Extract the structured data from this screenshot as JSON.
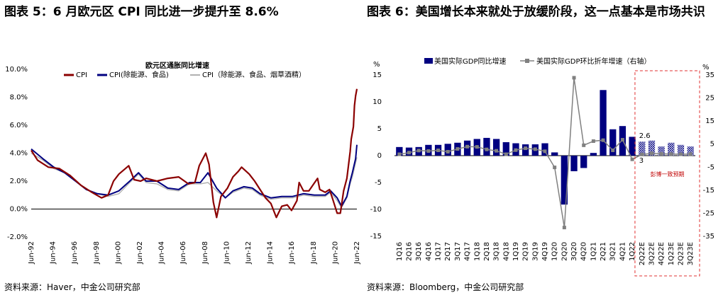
{
  "figure_left": {
    "title": "图表 5：6 月欧元区 CPI 同比进一步提升至 8.6%",
    "source": "资料来源：Haver，中金公司研究部"
  },
  "figure_right": {
    "title": "图表 6：美国增长本来就处于放缓阶段，这一点基本是市场共识",
    "source": "资料来源：Bloomberg，中金公司研究部"
  },
  "chart_data": [
    {
      "type": "line",
      "title": "欧元区通胀同比增速",
      "ylim": [
        -2,
        10
      ],
      "y_ticks": [
        "-2.0%",
        "0.0%",
        "2.0%",
        "4.0%",
        "6.0%",
        "8.0%",
        "10.0%"
      ],
      "x_ticks": [
        "Jun-92",
        "Jun-94",
        "Jun-96",
        "Jun-98",
        "Jun-00",
        "Jun-02",
        "Jun-04",
        "Jun-06",
        "Jun-08",
        "Jun-10",
        "Jun-12",
        "Jun-14",
        "Jun-16",
        "Jun-18",
        "Jun-20",
        "Jun-22"
      ],
      "x_range": [
        1992.42,
        2022.42
      ],
      "legend_position": "top",
      "colors": {
        "cpi": "#8b0000",
        "core": "#000080",
        "core2": "#b0b0b0"
      },
      "series": [
        {
          "name": "CPI",
          "points": [
            [
              1992.42,
              4.2
            ],
            [
              1993.0,
              3.5
            ],
            [
              1994.0,
              3.0
            ],
            [
              1995.0,
              2.9
            ],
            [
              1996.0,
              2.4
            ],
            [
              1997.0,
              1.7
            ],
            [
              1998.0,
              1.2
            ],
            [
              1998.9,
              0.8
            ],
            [
              1999.5,
              1.0
            ],
            [
              2000.0,
              2.0
            ],
            [
              2000.5,
              2.5
            ],
            [
              2001.4,
              3.1
            ],
            [
              2001.9,
              2.1
            ],
            [
              2002.5,
              2.0
            ],
            [
              2003.0,
              2.2
            ],
            [
              2004.0,
              2.0
            ],
            [
              2005.0,
              2.2
            ],
            [
              2006.0,
              2.3
            ],
            [
              2006.9,
              1.8
            ],
            [
              2007.5,
              1.9
            ],
            [
              2007.9,
              3.1
            ],
            [
              2008.5,
              4.0
            ],
            [
              2008.8,
              3.2
            ],
            [
              2009.2,
              0.5
            ],
            [
              2009.5,
              -0.6
            ],
            [
              2009.9,
              0.9
            ],
            [
              2010.5,
              1.5
            ],
            [
              2011.0,
              2.3
            ],
            [
              2011.5,
              2.7
            ],
            [
              2011.8,
              3.0
            ],
            [
              2012.5,
              2.5
            ],
            [
              2013.0,
              2.0
            ],
            [
              2013.5,
              1.4
            ],
            [
              2014.0,
              0.8
            ],
            [
              2014.5,
              0.4
            ],
            [
              2015.0,
              -0.6
            ],
            [
              2015.5,
              0.2
            ],
            [
              2016.0,
              0.3
            ],
            [
              2016.4,
              -0.1
            ],
            [
              2016.9,
              0.6
            ],
            [
              2017.1,
              1.9
            ],
            [
              2017.5,
              1.3
            ],
            [
              2018.0,
              1.3
            ],
            [
              2018.8,
              2.2
            ],
            [
              2019.0,
              1.4
            ],
            [
              2019.5,
              1.2
            ],
            [
              2019.9,
              1.4
            ],
            [
              2020.2,
              0.7
            ],
            [
              2020.6,
              -0.3
            ],
            [
              2020.9,
              -0.3
            ],
            [
              2021.2,
              1.3
            ],
            [
              2021.5,
              2.2
            ],
            [
              2021.8,
              4.1
            ],
            [
              2021.9,
              5.0
            ],
            [
              2022.1,
              5.9
            ],
            [
              2022.2,
              7.4
            ],
            [
              2022.3,
              8.1
            ],
            [
              2022.42,
              8.6
            ]
          ]
        },
        {
          "name": "CPI(除能源、食品)",
          "points": [
            [
              1992.42,
              4.3
            ],
            [
              1993.5,
              3.6
            ],
            [
              1994.5,
              3.0
            ],
            [
              1995.5,
              2.6
            ],
            [
              1996.5,
              2.0
            ],
            [
              1997.5,
              1.4
            ],
            [
              1998.5,
              1.1
            ],
            [
              1999.5,
              1.0
            ],
            [
              2000.5,
              1.3
            ],
            [
              2001.5,
              2.0
            ],
            [
              2002.3,
              2.6
            ],
            [
              2003.0,
              2.0
            ],
            [
              2004.0,
              2.0
            ],
            [
              2005.0,
              1.5
            ],
            [
              2006.0,
              1.4
            ],
            [
              2007.0,
              1.9
            ],
            [
              2008.0,
              1.9
            ],
            [
              2008.7,
              2.6
            ],
            [
              2009.5,
              1.5
            ],
            [
              2010.3,
              0.8
            ],
            [
              2011.0,
              1.3
            ],
            [
              2012.0,
              1.6
            ],
            [
              2012.8,
              1.5
            ],
            [
              2013.5,
              1.1
            ],
            [
              2014.5,
              0.8
            ],
            [
              2015.5,
              0.9
            ],
            [
              2016.5,
              0.9
            ],
            [
              2017.5,
              1.1
            ],
            [
              2018.5,
              1.0
            ],
            [
              2019.5,
              1.0
            ],
            [
              2020.0,
              1.3
            ],
            [
              2020.6,
              0.8
            ],
            [
              2021.0,
              0.2
            ],
            [
              2021.5,
              0.9
            ],
            [
              2021.8,
              2.0
            ],
            [
              2022.0,
              2.6
            ],
            [
              2022.3,
              3.6
            ],
            [
              2022.42,
              4.6
            ]
          ]
        },
        {
          "name": "CPI（除能源、食品、烟草酒精）",
          "points": [
            [
              1992.42,
              4.0
            ],
            [
              1993.5,
              3.5
            ],
            [
              1994.5,
              2.9
            ],
            [
              1995.5,
              2.6
            ],
            [
              1996.5,
              2.0
            ],
            [
              1997.5,
              1.4
            ],
            [
              1998.5,
              1.1
            ],
            [
              1999.5,
              0.9
            ],
            [
              2000.5,
              1.1
            ],
            [
              2001.5,
              1.9
            ],
            [
              2002.3,
              2.5
            ],
            [
              2003.0,
              1.9
            ],
            [
              2004.0,
              1.8
            ],
            [
              2005.0,
              1.4
            ],
            [
              2006.0,
              1.3
            ],
            [
              2007.0,
              1.8
            ],
            [
              2008.0,
              1.8
            ],
            [
              2008.7,
              1.9
            ],
            [
              2009.5,
              1.3
            ],
            [
              2010.3,
              0.8
            ],
            [
              2011.0,
              1.2
            ],
            [
              2012.0,
              1.5
            ],
            [
              2012.8,
              1.4
            ],
            [
              2013.5,
              1.0
            ],
            [
              2014.5,
              0.7
            ],
            [
              2015.5,
              0.8
            ],
            [
              2016.5,
              0.8
            ],
            [
              2017.5,
              1.0
            ],
            [
              2018.5,
              0.9
            ],
            [
              2019.5,
              0.9
            ],
            [
              2020.0,
              1.2
            ],
            [
              2020.6,
              0.6
            ],
            [
              2021.0,
              0.1
            ],
            [
              2021.5,
              0.8
            ],
            [
              2021.8,
              1.8
            ],
            [
              2022.0,
              2.3
            ],
            [
              2022.3,
              3.3
            ],
            [
              2022.42,
              3.7
            ]
          ]
        }
      ]
    },
    {
      "type": "bar",
      "categories": [
        "1Q16",
        "2Q16",
        "3Q16",
        "4Q16",
        "1Q17",
        "2Q17",
        "3Q17",
        "4Q17",
        "1Q18",
        "2Q18",
        "3Q18",
        "4Q18",
        "1Q19",
        "2Q19",
        "3Q19",
        "4Q19",
        "1Q20",
        "2Q20",
        "3Q20",
        "4Q20",
        "1Q21",
        "2Q21",
        "3Q21",
        "4Q21",
        "1Q22",
        "2Q22E",
        "3Q22E",
        "4Q22E",
        "1Q23E",
        "2Q23E",
        "3Q23E"
      ],
      "ylim": [
        -15,
        15
      ],
      "y_ticks": [
        "-15",
        "-10",
        "-5",
        "0",
        "5",
        "10",
        "15"
      ],
      "y2lim": [
        -35,
        35
      ],
      "y2_ticks": [
        "-35",
        "-25",
        "-15",
        "-5",
        "5",
        "15",
        "25",
        "35"
      ],
      "left_unit": "%",
      "right_unit": "%",
      "legend_position": "top",
      "colors": {
        "bar": "#000080",
        "line": "#808080",
        "box": "#e03030"
      },
      "series": [
        {
          "name": "美国实际GDP同比增速",
          "axis": "left",
          "values": [
            1.6,
            1.5,
            1.6,
            2.0,
            2.0,
            2.2,
            2.4,
            2.8,
            3.1,
            3.3,
            3.1,
            2.5,
            2.3,
            2.1,
            2.1,
            2.3,
            0.6,
            -9.1,
            -2.9,
            -2.3,
            0.5,
            12.2,
            4.9,
            5.5,
            3.5,
            2.6,
            2.8,
            1.7,
            2.4,
            2.0,
            1.7
          ]
        },
        {
          "name": "美国实际GDP环比折年增速（右轴）",
          "axis": "right",
          "values": [
            0.6,
            1.3,
            2.2,
            2.0,
            2.3,
            1.7,
            2.9,
            3.9,
            3.8,
            2.7,
            2.1,
            0.6,
            2.4,
            3.2,
            2.8,
            1.9,
            -5.1,
            -31.2,
            33.8,
            4.5,
            6.3,
            6.7,
            2.3,
            6.9,
            -1.6,
            0.5,
            1.0,
            0.8,
            0.7,
            0.6,
            0.7
          ]
        }
      ],
      "annotations": {
        "label_a": "2.6",
        "label_b": "3",
        "forecast_note": "彭博一致预期"
      }
    }
  ]
}
